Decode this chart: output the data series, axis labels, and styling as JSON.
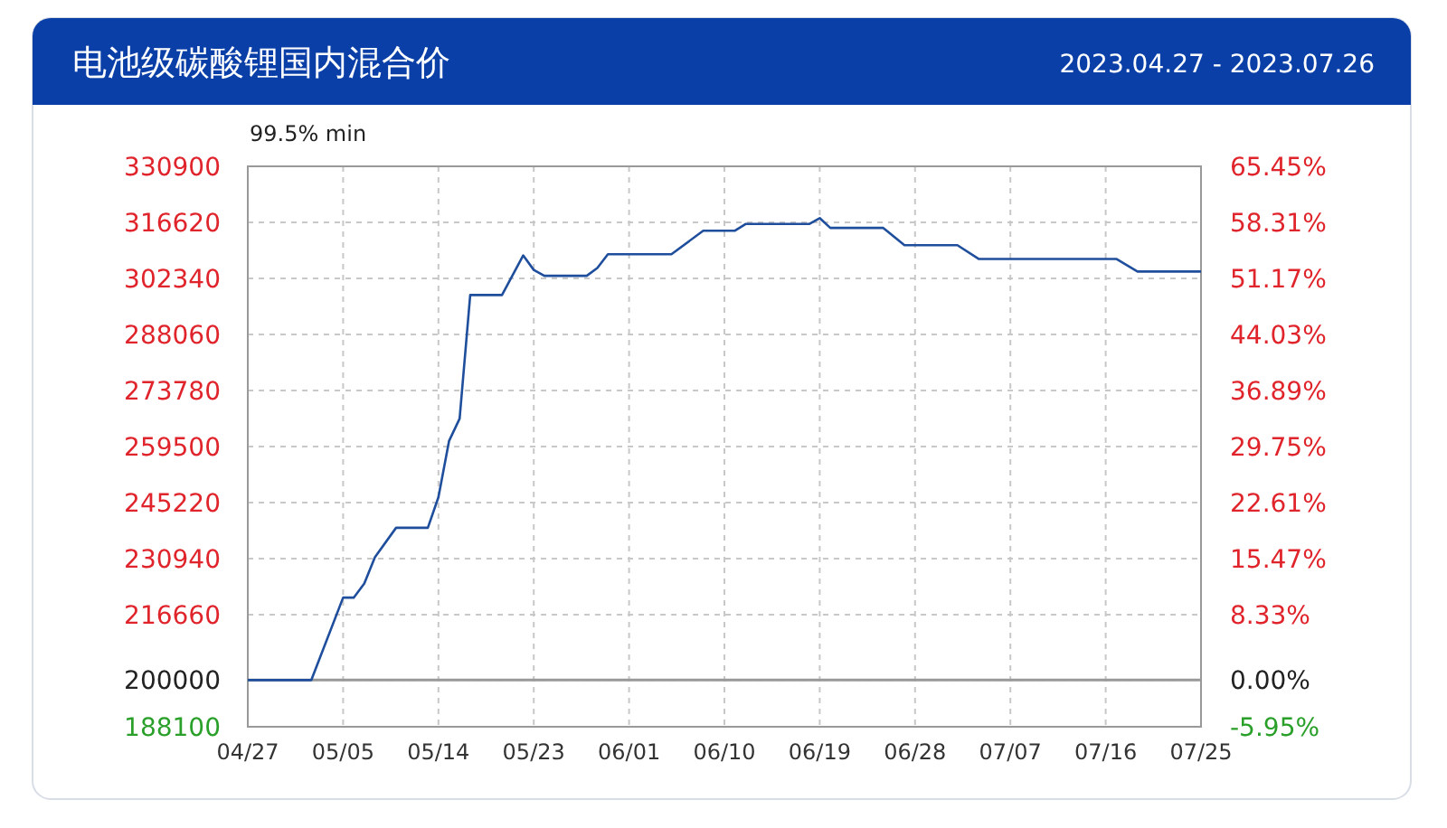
{
  "chart_data": {
    "type": "line",
    "title": "电池级碳酸锂国内混合价",
    "subtitle": "2023.04.27 - 2023.07.26",
    "annotations": [
      "99.5% min"
    ],
    "x": [
      "2023-04-27",
      "2023-05-03",
      "2023-05-06",
      "2023-05-07",
      "2023-05-08",
      "2023-05-09",
      "2023-05-11",
      "2023-05-14",
      "2023-05-15",
      "2023-05-16",
      "2023-05-17",
      "2023-05-18",
      "2023-05-21",
      "2023-05-23",
      "2023-05-24",
      "2023-05-25",
      "2023-05-29",
      "2023-05-30",
      "2023-05-31",
      "2023-06-06",
      "2023-06-09",
      "2023-06-12",
      "2023-06-13",
      "2023-06-19",
      "2023-06-20",
      "2023-06-21",
      "2023-06-26",
      "2023-06-28",
      "2023-07-03",
      "2023-07-05",
      "2023-07-18",
      "2023-07-20",
      "2023-07-26"
    ],
    "series": [
      {
        "color": "#1f4e9c",
        "values": [
          200000,
          200000,
          221000,
          221000,
          224600,
          231300,
          238800,
          238800,
          246600,
          260900,
          266600,
          298100,
          298100,
          308200,
          304500,
          303000,
          303000,
          305000,
          308500,
          308500,
          314500,
          314500,
          316200,
          316200,
          317700,
          315200,
          315200,
          310800,
          310800,
          307300,
          307300,
          304100,
          304100
        ]
      }
    ],
    "xlim": [
      "2023-04-27",
      "2023-07-26"
    ],
    "xticks": [
      {
        "value": "2023-04-27",
        "label": "04/27"
      },
      {
        "value": "2023-05-06",
        "label": "05/05"
      },
      {
        "value": "2023-05-15",
        "label": "05/14"
      },
      {
        "value": "2023-05-24",
        "label": "05/23"
      },
      {
        "value": "2023-06-02",
        "label": "06/01"
      },
      {
        "value": "2023-06-11",
        "label": "06/10"
      },
      {
        "value": "2023-06-20",
        "label": "06/19"
      },
      {
        "value": "2023-06-29",
        "label": "06/28"
      },
      {
        "value": "2023-07-08",
        "label": "07/07"
      },
      {
        "value": "2023-07-17",
        "label": "07/16"
      },
      {
        "value": "2023-07-26",
        "label": "07/25"
      }
    ],
    "ylim": [
      188100,
      330900
    ],
    "yticks": [
      188100,
      200000,
      216660,
      230940,
      245220,
      259500,
      273780,
      288060,
      302340,
      316620,
      330900
    ],
    "y2lim": [
      -5.95,
      65.45
    ],
    "y2ticks": [
      {
        "value": -5.95,
        "label": "-5.95%"
      },
      {
        "value": 0,
        "label": "0.00%"
      },
      {
        "value": 8.33,
        "label": "8.33%"
      },
      {
        "value": 15.47,
        "label": "15.47%"
      },
      {
        "value": 22.61,
        "label": "22.61%"
      },
      {
        "value": 29.75,
        "label": "29.75%"
      },
      {
        "value": 36.89,
        "label": "36.89%"
      },
      {
        "value": 44.03,
        "label": "44.03%"
      },
      {
        "value": 51.17,
        "label": "51.17%"
      },
      {
        "value": 58.31,
        "label": "58.31%"
      },
      {
        "value": 65.45,
        "label": "65.45%"
      }
    ],
    "ref_lines": [
      {
        "axis": "y",
        "value": 200000,
        "color": "#999999",
        "line_style": "solid"
      }
    ],
    "grid": true,
    "marker": "none",
    "line_style": "solid"
  }
}
